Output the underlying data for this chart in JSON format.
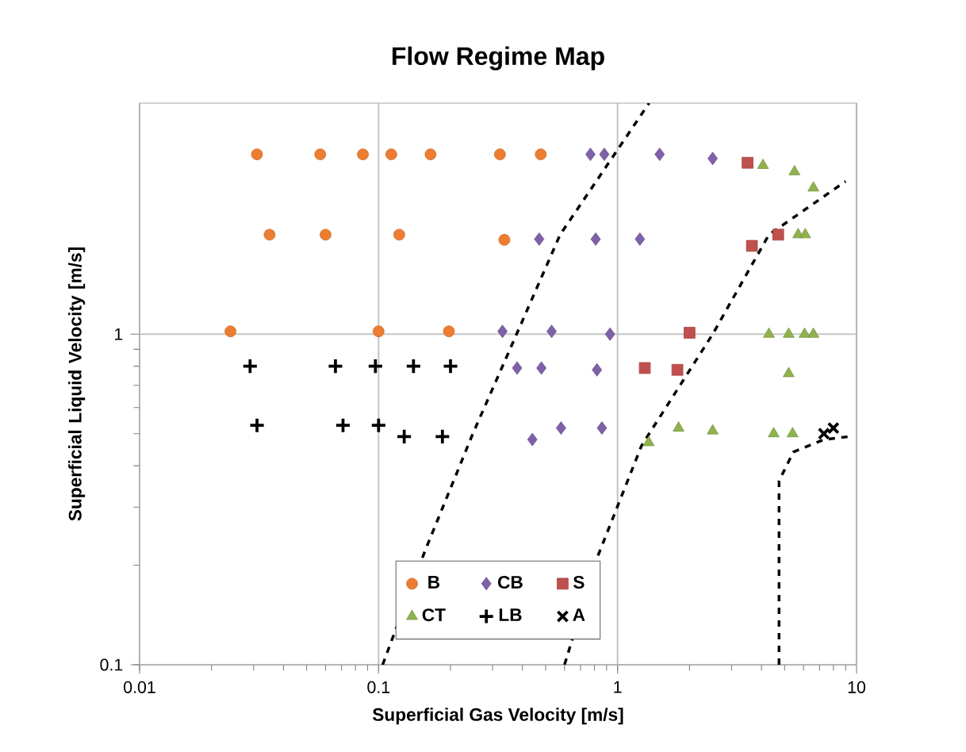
{
  "chart_data": {
    "type": "scatter",
    "title": "Flow Regime Map",
    "xlabel": "Superficial Gas Velocity [m/s]",
    "ylabel": "Superficial Liquid Velocity [m/s]",
    "log": "xy",
    "xlim": [
      0.01,
      10
    ],
    "ylim": [
      0.1,
      5
    ],
    "xticks": [
      0.01,
      0.1,
      1,
      10
    ],
    "yticks": [
      0.1,
      1
    ],
    "grid": true,
    "legend": "bottom",
    "series": [
      {
        "name": "B",
        "color": "#ed7d31",
        "marker": "circle",
        "x": [
          0.031,
          0.057,
          0.086,
          0.113,
          0.165,
          0.322,
          0.477,
          0.035,
          0.06,
          0.122,
          0.336,
          0.024,
          0.1,
          0.197
        ],
        "values": [
          3.5,
          3.5,
          3.5,
          3.5,
          3.5,
          3.5,
          3.5,
          2.0,
          2.0,
          2.0,
          1.93,
          1.02,
          1.02,
          1.02
        ]
      },
      {
        "name": "CB",
        "color": "#7e61a8",
        "marker": "diamond",
        "x": [
          0.77,
          0.88,
          1.5,
          2.5,
          0.47,
          0.81,
          1.24,
          0.33,
          0.53,
          0.93,
          0.38,
          0.48,
          0.82,
          0.44,
          0.58,
          0.86
        ],
        "values": [
          3.5,
          3.5,
          3.5,
          3.4,
          1.94,
          1.94,
          1.94,
          1.02,
          1.02,
          1.0,
          0.79,
          0.79,
          0.78,
          0.48,
          0.52,
          0.52
        ]
      },
      {
        "name": "S",
        "color": "#c0504d",
        "marker": "square",
        "x": [
          3.5,
          3.65,
          4.7,
          2.0,
          1.3,
          1.78
        ],
        "values": [
          3.3,
          1.85,
          2.0,
          1.01,
          0.79,
          0.78
        ]
      },
      {
        "name": "CT",
        "color": "#8fb24f",
        "marker": "triangle",
        "x": [
          4.06,
          5.5,
          6.6,
          5.7,
          6.1,
          4.3,
          5.2,
          6.06,
          6.6,
          5.2,
          1.35,
          1.8,
          2.5,
          4.5,
          5.4
        ],
        "values": [
          3.24,
          3.1,
          2.77,
          2.0,
          2.0,
          1.0,
          1.0,
          1.0,
          1.0,
          0.76,
          0.47,
          0.52,
          0.51,
          0.5,
          0.5
        ]
      },
      {
        "name": "LB",
        "color": "#000000",
        "marker": "plus",
        "x": [
          0.029,
          0.066,
          0.097,
          0.14,
          0.2,
          0.031,
          0.071,
          0.1,
          0.128,
          0.185
        ],
        "values": [
          0.8,
          0.8,
          0.8,
          0.8,
          0.8,
          0.53,
          0.53,
          0.53,
          0.49,
          0.49
        ]
      },
      {
        "name": "A",
        "color": "#000000",
        "marker": "cross",
        "x": [
          7.3,
          8.0
        ],
        "values": [
          0.5,
          0.52
        ]
      },
      {
        "type": "line",
        "color": "#000000",
        "line_style": "dashed",
        "marker": "none",
        "x": [
          0.104,
          0.156,
          0.248,
          0.378,
          0.575,
          1.355
        ],
        "values": [
          0.1,
          0.22,
          0.5,
          1.0,
          2.0,
          5.0
        ]
      },
      {
        "type": "line",
        "color": "#000000",
        "line_style": "dashed",
        "marker": "none",
        "x": [
          0.6,
          0.82,
          1.26,
          2.5,
          4.3,
          9.0
        ],
        "values": [
          0.1,
          0.21,
          0.46,
          1.0,
          2.0,
          2.9
        ]
      },
      {
        "type": "line",
        "color": "#000000",
        "line_style": "dashed",
        "marker": "none",
        "x": [
          4.74,
          4.74,
          5.44,
          7.3,
          9.3
        ],
        "values": [
          0.1,
          0.36,
          0.44,
          0.48,
          0.49
        ]
      }
    ]
  }
}
